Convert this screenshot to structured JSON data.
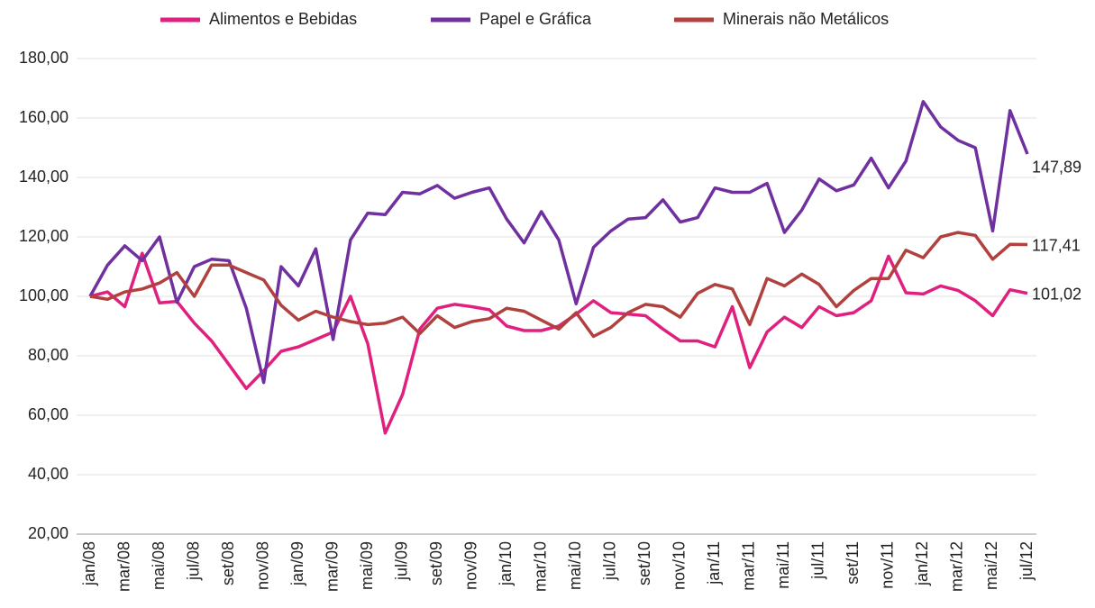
{
  "chart_data": {
    "type": "line",
    "categories": [
      "jan/08",
      null,
      "mar/08",
      null,
      "mai/08",
      null,
      "jul/08",
      null,
      "set/08",
      null,
      "nov/08",
      null,
      "jan/09",
      null,
      "mar/09",
      null,
      "mai/09",
      null,
      "jul/09",
      null,
      "set/09",
      null,
      "nov/09",
      null,
      "jan/10",
      null,
      "mar/10",
      null,
      "mai/10",
      null,
      "jul/10",
      null,
      "set/10",
      null,
      "nov/10",
      null,
      "jan/11",
      null,
      "mar/11",
      null,
      "mai/11",
      null,
      "jul/11",
      null,
      "set/11",
      null,
      "nov/11",
      null,
      "jan/12",
      null,
      "mar/12",
      null,
      "mai/12",
      null,
      "jul/12"
    ],
    "series": [
      {
        "name": "Alimentos e Bebidas",
        "color": "#e0207f",
        "values": [
          100,
          101.5,
          96.5,
          114.5,
          97.8,
          98.3,
          91,
          85,
          77,
          69,
          75,
          81.5,
          83,
          85.5,
          88,
          100,
          84,
          54,
          67,
          89,
          96,
          97.3,
          96.5,
          95.5,
          90,
          88.5,
          88.5,
          90,
          94,
          98.5,
          94.5,
          94,
          93.5,
          89,
          85,
          85,
          83,
          96.5,
          76,
          88,
          93,
          89.5,
          96.5,
          93.5,
          94.5,
          98.5,
          113.5,
          101.2,
          100.8,
          103.5,
          102,
          98.5,
          93.5,
          102.2,
          101.02
        ],
        "value_labels": [
          null,
          null,
          null,
          null,
          null,
          null,
          null,
          null,
          null,
          null,
          null,
          null,
          null,
          null,
          null,
          null,
          null,
          null,
          null,
          null,
          null,
          null,
          null,
          null,
          null,
          null,
          null,
          null,
          null,
          null,
          null,
          null,
          null,
          null,
          null,
          null,
          null,
          null,
          null,
          null,
          null,
          null,
          null,
          null,
          null,
          null,
          null,
          null,
          null,
          null,
          null,
          null,
          null,
          null,
          "101,02"
        ]
      },
      {
        "name": "Papel e Gráfica",
        "color": "#7030a0",
        "values": [
          100,
          110.5,
          117,
          112,
          120,
          98,
          110,
          112.5,
          112,
          96,
          71,
          110,
          103.5,
          116,
          85.5,
          119,
          128,
          127.5,
          135,
          134.5,
          137.3,
          133,
          135,
          136.5,
          126,
          118,
          128.5,
          119,
          97.5,
          116.5,
          122,
          126,
          126.5,
          132.5,
          125,
          126.5,
          136.5,
          135,
          135,
          138,
          121.5,
          129,
          139.5,
          135.5,
          137.5,
          146.5,
          136.5,
          145.5,
          165.5,
          157,
          152.5,
          150,
          122,
          162.5,
          147.89
        ],
        "value_labels": [
          null,
          null,
          null,
          null,
          null,
          null,
          null,
          null,
          null,
          null,
          null,
          null,
          null,
          null,
          null,
          null,
          null,
          null,
          null,
          null,
          null,
          null,
          null,
          null,
          null,
          null,
          null,
          null,
          null,
          null,
          null,
          null,
          null,
          null,
          null,
          null,
          null,
          null,
          null,
          null,
          null,
          null,
          null,
          null,
          null,
          null,
          null,
          null,
          null,
          null,
          null,
          null,
          null,
          null,
          "147,89"
        ]
      },
      {
        "name": "Minerais não Metálicos",
        "color": "#b0413e",
        "values": [
          100,
          99,
          101.5,
          102.5,
          104.5,
          108,
          100,
          110.5,
          110.5,
          108,
          105.5,
          97,
          92,
          95,
          93,
          91.5,
          90.5,
          91,
          93,
          87.5,
          93.5,
          89.5,
          91.5,
          92.5,
          96,
          95,
          92,
          89,
          94.5,
          86.5,
          89.5,
          94.5,
          97.3,
          96.5,
          93,
          101,
          104,
          102.5,
          90.5,
          106,
          103.5,
          107.5,
          104,
          96.5,
          102,
          106,
          106,
          115.5,
          113,
          120,
          121.5,
          120.5,
          112.5,
          117.5,
          117.41
        ],
        "value_labels": [
          null,
          null,
          null,
          null,
          null,
          null,
          null,
          null,
          null,
          null,
          null,
          null,
          null,
          null,
          null,
          null,
          null,
          null,
          null,
          null,
          null,
          null,
          null,
          null,
          null,
          null,
          null,
          null,
          null,
          null,
          null,
          null,
          null,
          null,
          null,
          null,
          null,
          null,
          null,
          null,
          null,
          null,
          null,
          null,
          null,
          null,
          null,
          null,
          null,
          null,
          null,
          null,
          null,
          null,
          "117,41"
        ]
      }
    ],
    "ylim": [
      20,
      180
    ],
    "yticks": [
      {
        "value": 20,
        "label": "20,00"
      },
      {
        "value": 40,
        "label": "40,00"
      },
      {
        "value": 60,
        "label": "60,00"
      },
      {
        "value": 80,
        "label": "80,00"
      },
      {
        "value": 100,
        "label": "100,00"
      },
      {
        "value": 120,
        "label": "120,00"
      },
      {
        "value": 140,
        "label": "140,00"
      },
      {
        "value": 160,
        "label": "160,00"
      },
      {
        "value": 180,
        "label": "180,00"
      }
    ],
    "grid": true,
    "legend": "top"
  }
}
